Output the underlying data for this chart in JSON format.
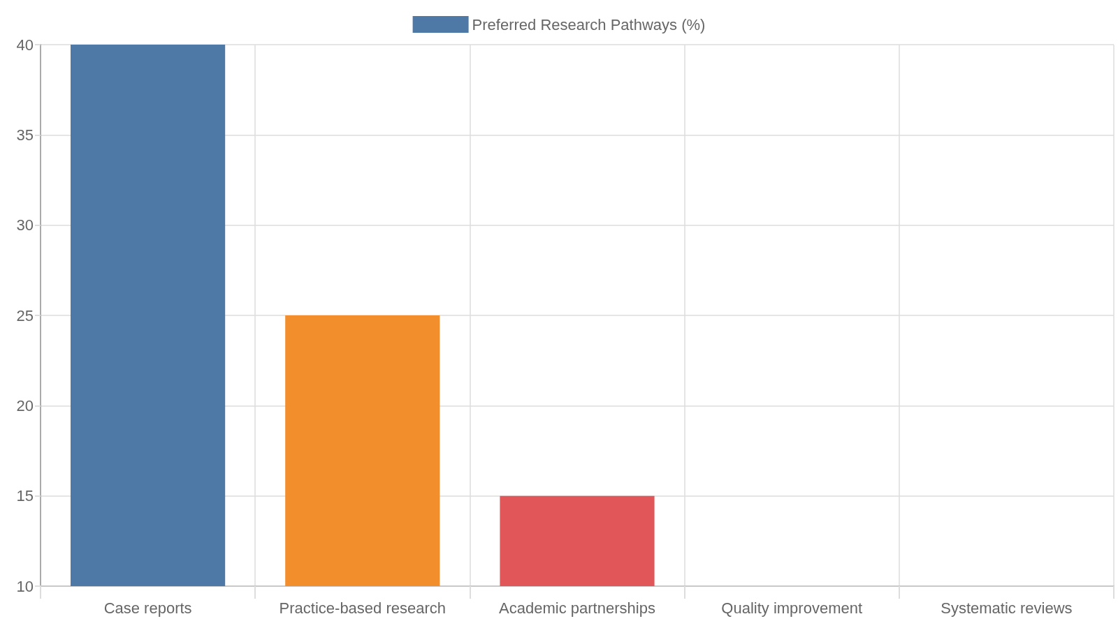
{
  "chart_data": {
    "type": "bar",
    "categories": [
      "Case reports",
      "Practice-based research",
      "Academic partnerships",
      "Quality improvement",
      "Systematic reviews"
    ],
    "series": [
      {
        "name": "Preferred Research Pathways (%)",
        "colors": [
          "#4e79a7",
          "#f28e2b",
          "#e15759",
          "#76b7b2",
          "#59a14f"
        ],
        "values": [
          40,
          25,
          15,
          10,
          10
        ]
      }
    ],
    "ylim": [
      10,
      40
    ],
    "yticks": [
      10,
      15,
      20,
      25,
      30,
      35,
      40
    ],
    "grid": true,
    "legend": "top"
  }
}
